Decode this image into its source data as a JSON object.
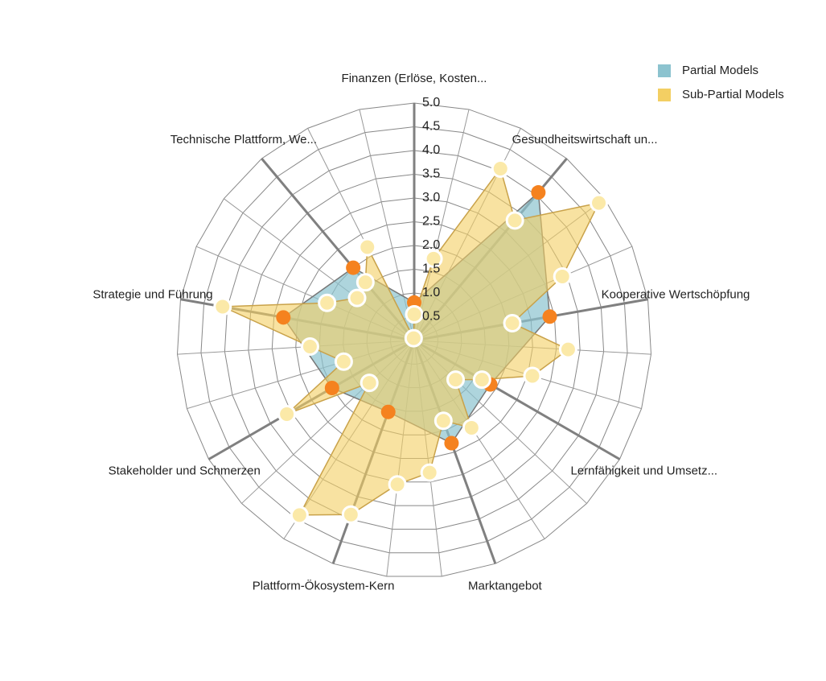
{
  "chart_data": {
    "type": "radar",
    "categories": [
      "Finanzen (Erlöse, Kosten...",
      "Gesundheitswirtschaft un...",
      "Kooperative Wertschöpfung",
      "Lernfähigkeit und Umsetz...",
      "Marktangebot",
      "Plattform-Ökosystem-Kern",
      "Stakeholder und Schmerzen",
      "Strategie und Führung",
      "Technische Plattform, We..."
    ],
    "series": [
      {
        "name": "Partial Models",
        "color": "#8cc3cf",
        "marker_color": "#f5821f",
        "values": [
          0.8,
          4.07,
          2.9,
          1.85,
          2.3,
          1.6,
          2.0,
          2.8,
          2.0
        ]
      },
      {
        "name": "Sub-Partial Models",
        "color": "#f3cf63",
        "marker_color": "#fbe9a8",
        "values": [
          [
            0.05,
            0.55,
            1.77
          ],
          [
            4.05,
            3.3,
            4.85
          ],
          [
            3.4,
            2.1,
            3.25
          ],
          [
            2.6,
            1.65,
            1.2
          ],
          [
            2.2,
            1.8,
            2.8
          ],
          [
            3.05,
            3.9,
            4.4
          ],
          [
            1.3,
            3.1,
            1.55
          ],
          [
            2.2,
            4.1,
            2.0
          ],
          [
            1.5,
            1.6,
            2.2
          ]
        ]
      }
    ],
    "rlim": [
      0,
      5
    ],
    "rticks": [
      {
        "value": 0.5,
        "label": "0.5"
      },
      {
        "value": 1,
        "label": "1.0"
      },
      {
        "value": 1.5,
        "label": "1.5"
      },
      {
        "value": 2,
        "label": "2.0"
      },
      {
        "value": 2.5,
        "label": "2.5"
      },
      {
        "value": 3,
        "label": "3.0"
      },
      {
        "value": 3.5,
        "label": "3.5"
      },
      {
        "value": 4,
        "label": "4.0"
      },
      {
        "value": 4.5,
        "label": "4.5"
      },
      {
        "value": 5,
        "label": "5.0"
      }
    ],
    "legend": "top-right"
  }
}
